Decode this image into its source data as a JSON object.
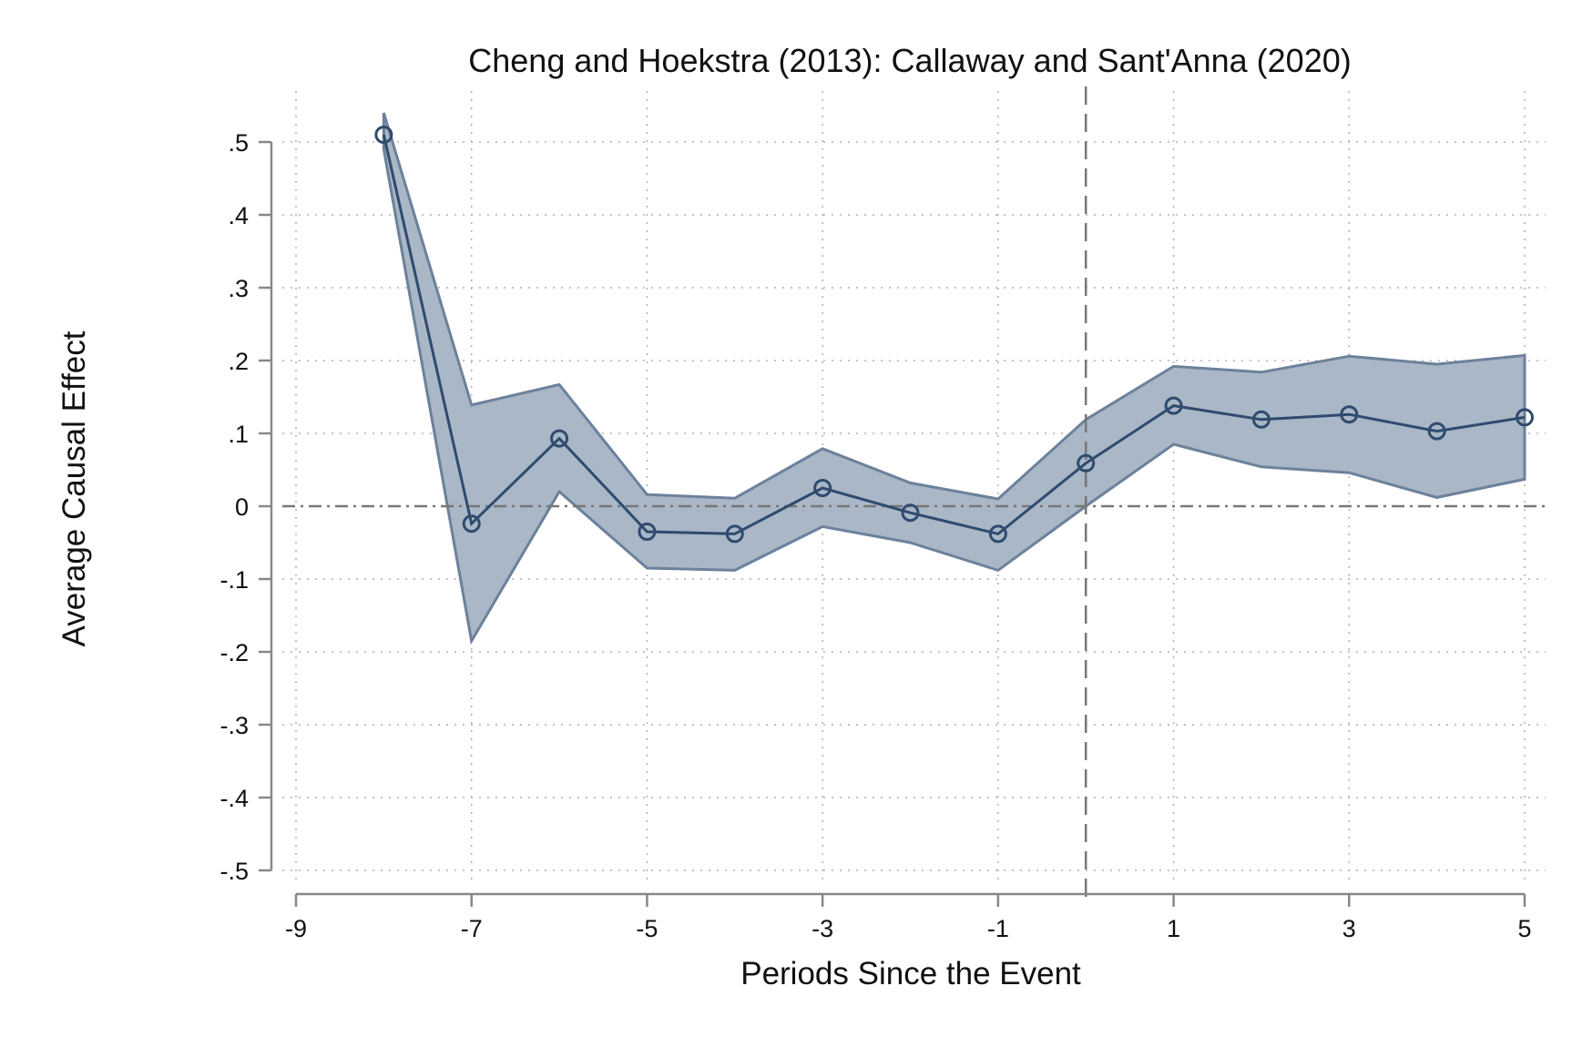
{
  "chart_data": {
    "type": "line",
    "title": "Cheng and Hoekstra (2013): Callaway and Sant'Anna (2020)",
    "xlabel": "Periods Since the Event",
    "ylabel": "Average Causal Effect",
    "xlim": [
      -9,
      5
    ],
    "ylim": [
      -0.5,
      0.5
    ],
    "x_ticks": [
      -9,
      -7,
      -5,
      -3,
      -1,
      1,
      3,
      5
    ],
    "x_tick_labels": [
      "-9",
      "-7",
      "-5",
      "-3",
      "-1",
      "1",
      "3",
      "5"
    ],
    "y_ticks": [
      0.5,
      0.4,
      0.3,
      0.2,
      0.1,
      0,
      -0.1,
      -0.2,
      -0.3,
      -0.4,
      -0.5
    ],
    "y_tick_labels": [
      ".5",
      ".4",
      ".3",
      ".2",
      ".1",
      "0",
      "-.1",
      "-.2",
      "-.3",
      "-.4",
      "-.5"
    ],
    "grid": true,
    "reference_lines": {
      "x": 0,
      "y": 0
    },
    "colors": {
      "line": "#2f4b6e",
      "band_fill": "#a9b7c7",
      "band_edge": "#6c819b",
      "grid": "#b0b0b0",
      "reference": "#777777",
      "axis": "#888888"
    },
    "series": [
      {
        "x": [
          -8,
          -7,
          -6,
          -5,
          -4,
          -3,
          -2,
          -1,
          0,
          1,
          2,
          3,
          4,
          5
        ],
        "values": [
          0.51,
          -0.024,
          0.093,
          -0.035,
          -0.038,
          0.025,
          -0.009,
          -0.038,
          0.059,
          0.138,
          0.119,
          0.126,
          0.103,
          0.122
        ],
        "lower": [
          0.49,
          -0.185,
          0.02,
          -0.085,
          -0.088,
          -0.028,
          -0.05,
          -0.088,
          0.0,
          0.085,
          0.054,
          0.046,
          0.012,
          0.037
        ],
        "upper": [
          0.54,
          0.139,
          0.167,
          0.016,
          0.011,
          0.079,
          0.032,
          0.01,
          0.119,
          0.192,
          0.184,
          0.206,
          0.195,
          0.207
        ]
      }
    ]
  }
}
